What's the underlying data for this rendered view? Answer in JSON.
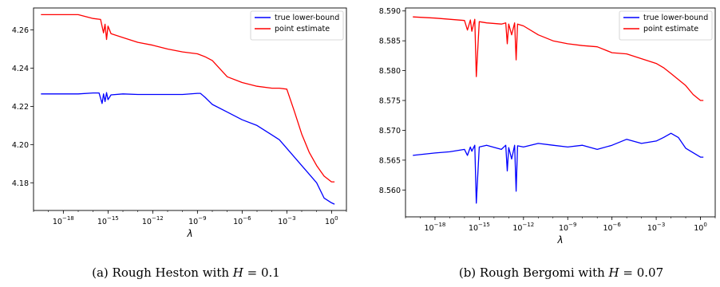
{
  "chart_data": [
    {
      "type": "line",
      "caption": "(a) Rough Heston with H = 0.1",
      "xlabel": "λ",
      "ylabel": "",
      "xscale": "log",
      "xlim": [
        1e-20,
        10
      ],
      "ylim": [
        4.1655,
        4.2715
      ],
      "x_ticks": [
        1e-18,
        1e-15,
        1e-12,
        1e-09,
        1e-06,
        0.001,
        1
      ],
      "x_tick_labels": [
        {
          "base": "10",
          "exp": "−18"
        },
        {
          "base": "10",
          "exp": "−15"
        },
        {
          "base": "10",
          "exp": "−12"
        },
        {
          "base": "10",
          "exp": "−9"
        },
        {
          "base": "10",
          "exp": "−6"
        },
        {
          "base": "10",
          "exp": "−3"
        },
        {
          "base": "10",
          "exp": "0"
        }
      ],
      "y_ticks": [
        4.18,
        4.2,
        4.22,
        4.24,
        4.26
      ],
      "y_tick_labels": [
        "4.18",
        "4.20",
        "4.22",
        "4.24",
        "4.26"
      ],
      "legend": "top-right",
      "series": [
        {
          "name": "true lower-bound",
          "color": "#0000ff",
          "log10_x": [
            -19.5,
            -18,
            -17,
            -16,
            -15.6,
            -15.4,
            -15.3,
            -15.2,
            -15.1,
            -15,
            -14.8,
            -14,
            -13,
            -12,
            -11,
            -10,
            -9,
            -8.8,
            -8.5,
            -8,
            -7,
            -6,
            -5,
            -4,
            -3.5,
            -3,
            -2,
            -1,
            -0.5,
            0,
            0.2
          ],
          "y": [
            4.2265,
            4.2265,
            4.2265,
            4.227,
            4.227,
            4.2215,
            4.2265,
            4.2225,
            4.2272,
            4.2235,
            4.226,
            4.2265,
            4.2262,
            4.2262,
            4.2262,
            4.2262,
            4.2268,
            4.2268,
            4.2248,
            4.221,
            4.217,
            4.213,
            4.21,
            4.205,
            4.2025,
            4.198,
            4.189,
            4.18,
            4.172,
            4.1695,
            4.1688
          ]
        },
        {
          "name": "point estimate",
          "color": "#ff0000",
          "log10_x": [
            -19.5,
            -18,
            -17,
            -16,
            -15.5,
            -15.3,
            -15.2,
            -15.1,
            -15,
            -14.8,
            -14,
            -13,
            -12,
            -11,
            -10,
            -9,
            -8.5,
            -8,
            -7,
            -6,
            -5,
            -4,
            -3.5,
            -3,
            -2.5,
            -2,
            -1.5,
            -1,
            -0.5,
            0,
            0.2
          ],
          "y": [
            4.268,
            4.268,
            4.268,
            4.266,
            4.2655,
            4.2585,
            4.263,
            4.255,
            4.262,
            4.258,
            4.256,
            4.2535,
            4.252,
            4.25,
            4.2485,
            4.2475,
            4.246,
            4.244,
            4.2355,
            4.2325,
            4.2305,
            4.2295,
            4.2295,
            4.229,
            4.2175,
            4.2055,
            4.196,
            4.189,
            4.1835,
            4.1805,
            4.1805
          ]
        }
      ]
    },
    {
      "type": "line",
      "caption": "(b) Rough Bergomi with H = 0.07",
      "xlabel": "λ",
      "ylabel": "",
      "xscale": "log",
      "xlim": [
        1e-20,
        10
      ],
      "ylim": [
        8.5555,
        8.5905
      ],
      "x_ticks": [
        1e-18,
        1e-15,
        1e-12,
        1e-09,
        1e-06,
        0.001,
        1
      ],
      "x_tick_labels": [
        {
          "base": "10",
          "exp": "−18"
        },
        {
          "base": "10",
          "exp": "−15"
        },
        {
          "base": "10",
          "exp": "−12"
        },
        {
          "base": "10",
          "exp": "−9"
        },
        {
          "base": "10",
          "exp": "−6"
        },
        {
          "base": "10",
          "exp": "−3"
        },
        {
          "base": "10",
          "exp": "0"
        }
      ],
      "y_ticks": [
        8.56,
        8.565,
        8.57,
        8.575,
        8.58,
        8.585,
        8.59
      ],
      "y_tick_labels": [
        "8.560",
        "8.565",
        "8.570",
        "8.575",
        "8.580",
        "8.585",
        "8.590"
      ],
      "legend": "top-right",
      "series": [
        {
          "name": "true lower-bound",
          "color": "#0000ff",
          "log10_x": [
            -19.5,
            -18,
            -17,
            -16,
            -15.8,
            -15.6,
            -15.5,
            -15.3,
            -15.2,
            -15,
            -14.5,
            -13.5,
            -13.2,
            -13.1,
            -13,
            -12.8,
            -12.6,
            -12.5,
            -12.4,
            -12,
            -11,
            -10,
            -9,
            -8,
            -7,
            -6,
            -5,
            -4,
            -3,
            -2.5,
            -2,
            -1.5,
            -1,
            0,
            0.2
          ],
          "y": [
            8.5658,
            8.5662,
            8.5664,
            8.5668,
            8.5658,
            8.5672,
            8.5665,
            8.5675,
            8.5578,
            8.5672,
            8.5675,
            8.5668,
            8.5675,
            8.5632,
            8.5671,
            8.5652,
            8.5675,
            8.5598,
            8.5674,
            8.5672,
            8.5678,
            8.5675,
            8.5672,
            8.5675,
            8.5668,
            8.5675,
            8.5685,
            8.5678,
            8.5682,
            8.5688,
            8.5695,
            8.5688,
            8.567,
            8.5655,
            8.5655
          ]
        },
        {
          "name": "point estimate",
          "color": "#ff0000",
          "log10_x": [
            -19.5,
            -18,
            -17,
            -16,
            -15.8,
            -15.6,
            -15.5,
            -15.3,
            -15.2,
            -15,
            -14.5,
            -13.5,
            -13.2,
            -13.1,
            -13,
            -12.8,
            -12.6,
            -12.5,
            -12.4,
            -12,
            -11,
            -10,
            -9,
            -8,
            -7,
            -6,
            -5,
            -4,
            -3,
            -2.5,
            -2,
            -1.5,
            -1,
            -0.5,
            0,
            0.2
          ],
          "y": [
            8.589,
            8.5888,
            8.5886,
            8.5884,
            8.5868,
            8.5885,
            8.5866,
            8.5886,
            8.579,
            8.5882,
            8.588,
            8.5878,
            8.588,
            8.5845,
            8.5878,
            8.586,
            8.588,
            8.5818,
            8.5878,
            8.5875,
            8.586,
            8.585,
            8.5845,
            8.5842,
            8.584,
            8.583,
            8.5828,
            8.582,
            8.5812,
            8.5805,
            8.5795,
            8.5785,
            8.5775,
            8.576,
            8.575,
            8.575
          ]
        }
      ]
    }
  ]
}
